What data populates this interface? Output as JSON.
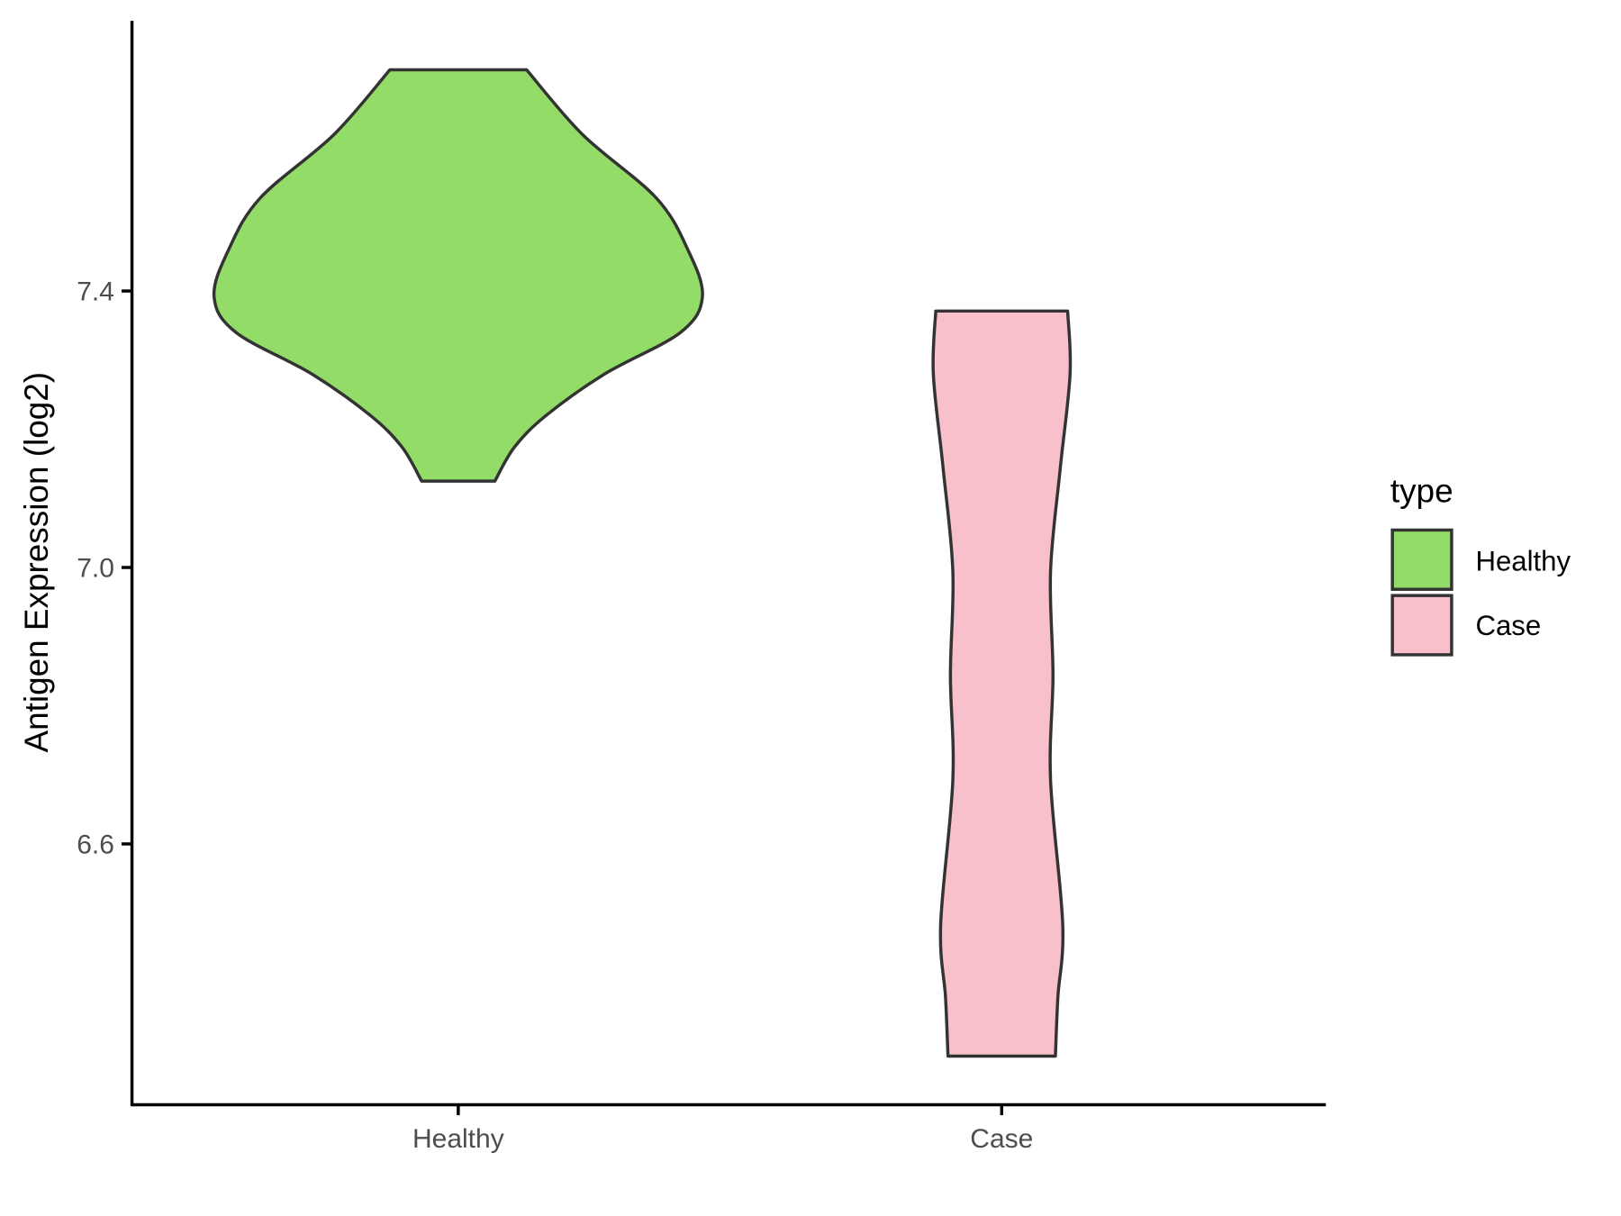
{
  "chart_data": {
    "type": "violin",
    "ylabel": "Antigen Expression (log2)",
    "xlabel": "",
    "categories": [
      "Healthy",
      "Case"
    ],
    "y_ticks": [
      "6.6",
      "7.0",
      "7.4"
    ],
    "y_tick_values": [
      6.6,
      7.0,
      7.4
    ],
    "ylim": [
      6.22,
      7.79
    ],
    "grid": false,
    "legend": {
      "title": "type",
      "position": "right",
      "entries": [
        "Healthy",
        "Case"
      ]
    },
    "series": [
      {
        "name": "Healthy",
        "color": "#94DC68",
        "min": 7.125,
        "max": 7.72,
        "profile_values": [
          7.72,
          7.626,
          7.535,
          7.46,
          7.392,
          7.34,
          7.28,
          7.22,
          7.174,
          7.125
        ],
        "relative_width": [
          0.28,
          0.51,
          0.81,
          0.94,
          1.0,
          0.91,
          0.6,
          0.36,
          0.23,
          0.15
        ]
      },
      {
        "name": "Case",
        "color": "#F7C0CA",
        "min": 6.293,
        "max": 7.371,
        "profile_values": [
          7.371,
          7.28,
          7.144,
          6.994,
          6.844,
          6.693,
          6.483,
          6.378,
          6.293
        ],
        "relative_width": [
          0.27,
          0.28,
          0.24,
          0.2,
          0.21,
          0.2,
          0.25,
          0.23,
          0.22
        ]
      }
    ]
  }
}
